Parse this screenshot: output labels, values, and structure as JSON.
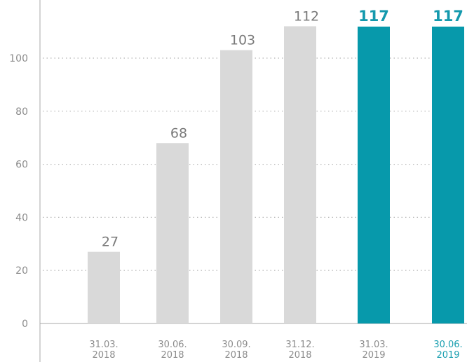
{
  "chart_data": {
    "type": "bar",
    "categories": [
      [
        "31.03.",
        "2018"
      ],
      [
        "30.06.",
        "2018"
      ],
      [
        "30.09.",
        "2018"
      ],
      [
        "31.12.",
        "2018"
      ],
      [
        "31.03.",
        "2019"
      ],
      [
        "30.06.",
        "2019"
      ]
    ],
    "values": [
      27,
      68,
      103,
      112,
      117,
      117
    ],
    "value_labels": [
      "27",
      "68",
      "103",
      "112",
      "117",
      "117"
    ],
    "highlighted": [
      false,
      false,
      false,
      false,
      true,
      true
    ],
    "yticks": [
      0,
      20,
      40,
      60,
      80,
      100
    ],
    "ylim": [
      0,
      120
    ],
    "grid": true,
    "colors": {
      "bar": "#d9d9d9",
      "bar_highlight": "#0799ab",
      "label_highlight": "#1499ad",
      "tick_highlight": "#1a9fb0"
    },
    "title": "",
    "xlabel": "",
    "ylabel": ""
  }
}
